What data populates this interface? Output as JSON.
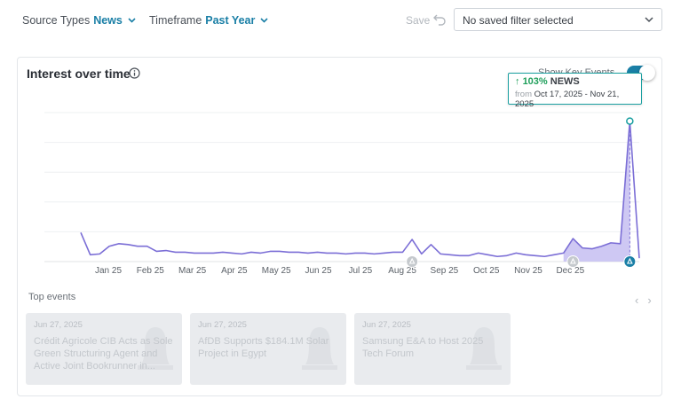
{
  "filters": {
    "source_types_label": "Source Types",
    "source_types_value": "News",
    "timeframe_label": "Timeframe",
    "timeframe_value": "Past Year"
  },
  "actions": {
    "save_label": "Save",
    "saved_filter_value": "No saved filter selected"
  },
  "card": {
    "title": "Interest over time",
    "key_events_label": "Show Key Events",
    "key_events_on": true
  },
  "tooltip": {
    "arrow": "↑",
    "percent": "103%",
    "source": "NEWS",
    "from_label": "from",
    "range": "Oct 17, 2025 - Nov 21, 2025"
  },
  "chart_data": {
    "type": "area",
    "x_tick_labels": [
      "Jan 25",
      "Feb 25",
      "Mar 25",
      "Apr 25",
      "May 25",
      "Jun 25",
      "Jul 25",
      "Aug 25",
      "Sep 25",
      "Oct 25",
      "Nov 25",
      "Dec 25"
    ],
    "grid": true,
    "series": [
      {
        "color": "#7b6ed6",
        "values": [
          34,
          8,
          9,
          18,
          21,
          20,
          18,
          18,
          12,
          13,
          11,
          11,
          10,
          10,
          10,
          11,
          10,
          9,
          11,
          10,
          12,
          12,
          11,
          11,
          10,
          11,
          10,
          10,
          9,
          10,
          10,
          9,
          10,
          11,
          11,
          26,
          9,
          20,
          9,
          8,
          7,
          7,
          10,
          8,
          6,
          7,
          10,
          8,
          7,
          6,
          8,
          10,
          27,
          16,
          15,
          18,
          22,
          21,
          165,
          4
        ]
      }
    ],
    "highlight_range": {
      "start_index": 51,
      "end_index": 58
    },
    "peak_index": 58,
    "key_event_markers": [
      {
        "index": 35,
        "state": "inactive"
      },
      {
        "index": 52,
        "state": "inactive"
      },
      {
        "index": 58,
        "state": "active"
      }
    ],
    "ylim": [
      0,
      175
    ]
  },
  "events": {
    "title": "Top events",
    "prev": "‹",
    "next": "›",
    "items": [
      {
        "date": "Jun 27, 2025",
        "title": "Crédit Agricole CIB Acts as Sole Green Structuring Agent and Active Joint Bookrunner in..."
      },
      {
        "date": "Jun 27, 2025",
        "title": "AfDB Supports $184.1M Solar Project in Egypt"
      },
      {
        "date": "Jun 27, 2025",
        "title": "Samsung E&A to Host 2025 Tech Forum"
      }
    ]
  },
  "colors": {
    "accent": "#1a7fa6",
    "line": "#7b6ed6",
    "fill": "#c9c2f2",
    "tooltip_border": "#1a9fa0",
    "up": "#1e9e5a"
  }
}
